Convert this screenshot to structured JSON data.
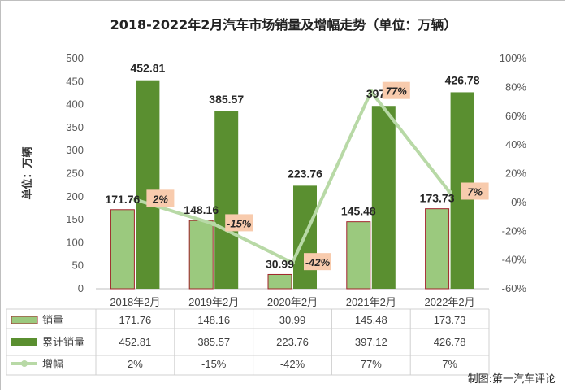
{
  "chart_data": {
    "type": "bar",
    "title": "2018-2022年2月汽车市场销量及增幅走势（单位：万辆）",
    "ylabel": "单位：万辆",
    "categories": [
      "2018年2月",
      "2019年2月",
      "2020年2月",
      "2021年2月",
      "2022年2月"
    ],
    "ylim": [
      0,
      500
    ],
    "y_ticks": [
      "0",
      "50",
      "100",
      "150",
      "200",
      "250",
      "300",
      "350",
      "400",
      "450",
      "500"
    ],
    "y2lim": [
      -60,
      100
    ],
    "y2_ticks": [
      "-60%",
      "-40%",
      "-20%",
      "0%",
      "20%",
      "40%",
      "60%",
      "80%",
      "100%"
    ],
    "series": [
      {
        "name": "销量",
        "type": "bar",
        "color": "#9bc97e",
        "values": [
          171.76,
          148.16,
          30.99,
          145.48,
          173.73
        ],
        "labels": [
          "171.76",
          "148.16",
          "30.99",
          "145.48",
          "173.73"
        ]
      },
      {
        "name": "累计销量",
        "type": "bar",
        "color": "#5a8f30",
        "values": [
          452.81,
          385.57,
          223.76,
          397.12,
          426.78
        ],
        "labels": [
          "452.81",
          "385.57",
          "223.76",
          "397.12",
          "426.78"
        ]
      },
      {
        "name": "增幅",
        "type": "line",
        "axis": "right",
        "color": "#b8d9a6",
        "values": [
          2,
          -15,
          -42,
          77,
          7
        ],
        "labels": [
          "2%",
          "-15%",
          "-42%",
          "77%",
          "7%"
        ]
      }
    ],
    "grid": false,
    "legend": "data-table-below"
  },
  "credit": "制图:第一汽车评论"
}
